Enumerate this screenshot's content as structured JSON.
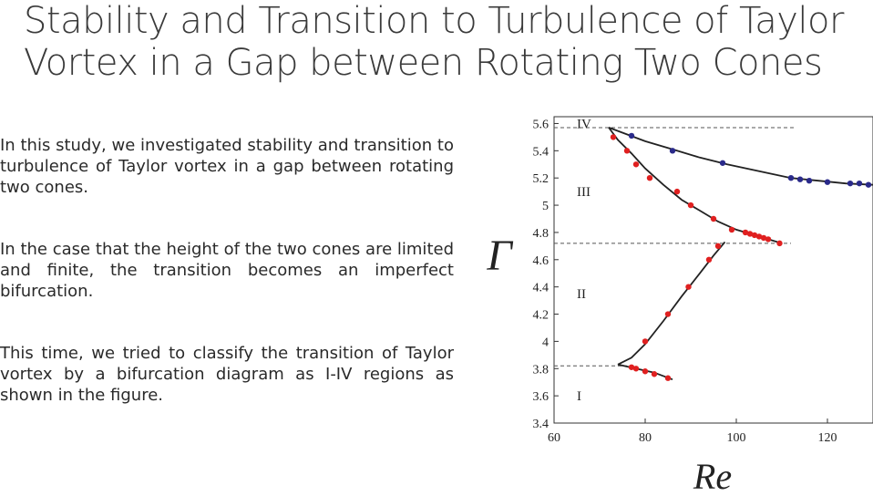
{
  "slide": {
    "title": "Stability and Transition to Turbulence of Taylor Vortex in a Gap between Rotating Two Cones",
    "paragraphs": [
      "In this study, we investigated stability and transition to turbulence of Taylor vortex in a gap between rotating two cones.",
      "In the case that the height of the two cones are limited and finite, the transition becomes an imperfect bifurcation.",
      "This time, we tried to classify the transition of Taylor vortex by a bifurcation diagram as I-IV regions as shown in the figure."
    ]
  },
  "chart_data": {
    "type": "scatter",
    "xlabel": "Re",
    "ylabel": "Γ",
    "xlim": [
      60,
      130
    ],
    "ylim": [
      3.4,
      5.65
    ],
    "xticks": [
      60,
      80,
      100,
      120
    ],
    "yticks": [
      3.4,
      3.6,
      3.8,
      4.0,
      4.2,
      4.4,
      4.6,
      4.8,
      5.0,
      5.2,
      5.4,
      5.6
    ],
    "ytick_labels": [
      "3.4",
      "3.6",
      "3.8",
      "4",
      "4.2",
      "4.4",
      "4.6",
      "4.8",
      "5",
      "5.2",
      "5.4",
      "5.6"
    ],
    "grid": false,
    "regions": [
      {
        "label": "IV",
        "x": 65,
        "y": 5.6
      },
      {
        "label": "III",
        "x": 65,
        "y": 5.1
      },
      {
        "label": "II",
        "x": 65,
        "y": 4.35
      },
      {
        "label": "I",
        "x": 65,
        "y": 3.6
      }
    ],
    "reference_lines": [
      {
        "y": 5.57,
        "x_from": 60,
        "x_to": 113
      },
      {
        "y": 4.72,
        "x_from": 60,
        "x_to": 112
      },
      {
        "y": 3.82,
        "x_from": 60,
        "x_to": 76
      }
    ],
    "series": [
      {
        "color": "#2a2a8a",
        "points": [
          [
            77,
            5.51
          ],
          [
            86,
            5.4
          ],
          [
            97,
            5.31
          ],
          [
            112,
            5.2
          ],
          [
            114,
            5.19
          ],
          [
            116,
            5.18
          ],
          [
            120,
            5.17
          ],
          [
            125,
            5.16
          ],
          [
            127,
            5.16
          ],
          [
            129,
            5.15
          ]
        ]
      },
      {
        "color": "#e02020",
        "points": [
          [
            73,
            5.5
          ],
          [
            76,
            5.4
          ],
          [
            78,
            5.3
          ],
          [
            81,
            5.2
          ],
          [
            87,
            5.1
          ],
          [
            90,
            5.0
          ],
          [
            95,
            4.9
          ],
          [
            99,
            4.82
          ],
          [
            102,
            4.8
          ],
          [
            103,
            4.79
          ],
          [
            104,
            4.78
          ],
          [
            105,
            4.77
          ],
          [
            106,
            4.76
          ],
          [
            107,
            4.75
          ],
          [
            109.5,
            4.72
          ]
        ]
      },
      {
        "color": "#e02020",
        "points": [
          [
            80,
            4.0
          ],
          [
            85,
            4.2
          ],
          [
            89.5,
            4.4
          ],
          [
            94,
            4.6
          ],
          [
            96,
            4.7
          ]
        ]
      },
      {
        "color": "#e02020",
        "points": [
          [
            77,
            3.81
          ],
          [
            78,
            3.8
          ],
          [
            80,
            3.78
          ],
          [
            82,
            3.76
          ],
          [
            85,
            3.73
          ]
        ]
      }
    ],
    "curves": [
      {
        "points": [
          [
            72,
            5.57
          ],
          [
            76,
            5.52
          ],
          [
            80,
            5.47
          ],
          [
            86,
            5.41
          ],
          [
            92,
            5.35
          ],
          [
            98,
            5.3
          ],
          [
            105,
            5.25
          ],
          [
            112,
            5.2
          ],
          [
            118,
            5.18
          ],
          [
            124,
            5.16
          ],
          [
            130,
            5.15
          ]
        ]
      },
      {
        "points": [
          [
            72,
            5.57
          ],
          [
            74,
            5.48
          ],
          [
            77,
            5.38
          ],
          [
            80,
            5.27
          ],
          [
            84,
            5.15
          ],
          [
            88,
            5.04
          ],
          [
            92,
            4.96
          ],
          [
            96,
            4.88
          ],
          [
            100,
            4.82
          ],
          [
            105,
            4.77
          ],
          [
            110,
            4.72
          ]
        ]
      },
      {
        "points": [
          [
            74,
            3.83
          ],
          [
            77,
            3.88
          ],
          [
            80,
            3.98
          ],
          [
            84,
            4.15
          ],
          [
            88,
            4.33
          ],
          [
            92,
            4.5
          ],
          [
            95,
            4.63
          ],
          [
            97.5,
            4.73
          ]
        ]
      },
      {
        "points": [
          [
            74,
            3.83
          ],
          [
            78,
            3.8
          ],
          [
            82,
            3.77
          ],
          [
            86,
            3.72
          ]
        ]
      }
    ]
  }
}
